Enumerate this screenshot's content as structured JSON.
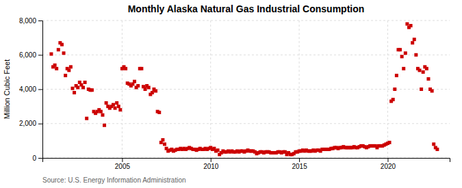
{
  "chart_data": {
    "type": "scatter",
    "title": "Monthly Alaska Natural Gas Industrial Consumption",
    "ylabel": "Million Cubic Feet",
    "annotations": [
      "Source: U.S. Energy Information Administration"
    ],
    "color": "#cc0000",
    "marker": "square",
    "grid": true,
    "xlim": [
      2000.5,
      2023.5
    ],
    "xticks": [
      2005,
      2010,
      2015,
      2020
    ],
    "ylim": [
      0,
      8000
    ],
    "yticks": [
      0,
      {
        "value": 2000,
        "label": "2,000"
      },
      {
        "value": 4000,
        "label": "4,000"
      },
      {
        "value": 6000,
        "label": "6,000"
      },
      {
        "value": 8000,
        "label": "8,000"
      }
    ],
    "x": [
      2001.0,
      2001.1,
      2001.2,
      2001.3,
      2001.4,
      2001.5,
      2001.6,
      2001.7,
      2001.8,
      2001.9,
      2002.0,
      2002.1,
      2002.2,
      2002.3,
      2002.4,
      2002.5,
      2002.6,
      2002.7,
      2002.8,
      2002.9,
      2003.0,
      2003.1,
      2003.2,
      2003.3,
      2003.4,
      2003.5,
      2003.6,
      2003.7,
      2003.8,
      2003.9,
      2004.0,
      2004.1,
      2004.2,
      2004.3,
      2004.4,
      2004.5,
      2004.6,
      2004.7,
      2004.8,
      2004.9,
      2005.0,
      2005.1,
      2005.2,
      2005.3,
      2005.4,
      2005.5,
      2005.6,
      2005.7,
      2005.8,
      2005.9,
      2006.0,
      2006.1,
      2006.2,
      2006.3,
      2006.4,
      2006.5,
      2006.6,
      2006.7,
      2006.8,
      2006.9,
      2007.0,
      2007.1,
      2007.2,
      2007.3,
      2007.4,
      2007.5,
      2007.6,
      2007.7,
      2007.8,
      2007.9,
      2008.0,
      2008.1,
      2008.2,
      2008.3,
      2008.4,
      2008.5,
      2008.6,
      2008.7,
      2008.8,
      2008.9,
      2009.0,
      2009.1,
      2009.2,
      2009.3,
      2009.4,
      2009.5,
      2009.6,
      2009.7,
      2009.8,
      2009.9,
      2010.0,
      2010.1,
      2010.2,
      2010.3,
      2010.4,
      2010.5,
      2010.6,
      2010.7,
      2010.8,
      2010.9,
      2011.0,
      2011.1,
      2011.2,
      2011.3,
      2011.4,
      2011.5,
      2011.6,
      2011.7,
      2011.8,
      2011.9,
      2012.0,
      2012.1,
      2012.2,
      2012.3,
      2012.4,
      2012.5,
      2012.6,
      2012.7,
      2012.8,
      2012.9,
      2013.0,
      2013.1,
      2013.2,
      2013.3,
      2013.4,
      2013.5,
      2013.6,
      2013.7,
      2013.8,
      2013.9,
      2014.0,
      2014.1,
      2014.2,
      2014.3,
      2014.4,
      2014.5,
      2014.6,
      2014.7,
      2014.8,
      2014.9,
      2015.0,
      2015.1,
      2015.2,
      2015.3,
      2015.4,
      2015.5,
      2015.6,
      2015.7,
      2015.8,
      2015.9,
      2016.0,
      2016.1,
      2016.2,
      2016.3,
      2016.4,
      2016.5,
      2016.6,
      2016.7,
      2016.8,
      2016.9,
      2017.0,
      2017.1,
      2017.2,
      2017.3,
      2017.4,
      2017.5,
      2017.6,
      2017.7,
      2017.8,
      2017.9,
      2018.0,
      2018.1,
      2018.2,
      2018.3,
      2018.4,
      2018.5,
      2018.6,
      2018.7,
      2018.8,
      2018.9,
      2019.0,
      2019.1,
      2019.2,
      2019.3,
      2019.4,
      2019.5,
      2019.6,
      2019.7,
      2019.8,
      2019.9,
      2020.0,
      2020.1,
      2020.2,
      2020.3,
      2020.4,
      2020.5,
      2020.6,
      2020.7,
      2020.8,
      2020.9,
      2021.0,
      2021.1,
      2021.2,
      2021.3,
      2021.4,
      2021.5,
      2021.6,
      2021.7,
      2021.8,
      2021.9,
      2022.0,
      2022.1,
      2022.2,
      2022.3,
      2022.4,
      2022.5,
      2022.6,
      2022.7,
      2022.8
    ],
    "values": [
      6050,
      5300,
      5400,
      5200,
      6300,
      6700,
      6600,
      6100,
      4800,
      5200,
      5100,
      5300,
      4050,
      3800,
      4200,
      4100,
      4400,
      4250,
      4100,
      4400,
      2300,
      4000,
      3950,
      3950,
      2700,
      2600,
      2700,
      2800,
      2700,
      2500,
      1900,
      3200,
      3000,
      2900,
      3000,
      3100,
      2900,
      3200,
      3000,
      2800,
      5200,
      5300,
      5200,
      4350,
      4300,
      4200,
      4300,
      4450,
      4100,
      4200,
      5200,
      5200,
      4150,
      4000,
      4200,
      4100,
      3700,
      3800,
      4000,
      3900,
      2700,
      2650,
      900,
      1050,
      800,
      550,
      400,
      450,
      500,
      400,
      450,
      500,
      500,
      550,
      500,
      550,
      500,
      550,
      600,
      550,
      500,
      500,
      450,
      500,
      550,
      500,
      500,
      550,
      500,
      550,
      600,
      500,
      550,
      400,
      450,
      200,
      300,
      400,
      350,
      350,
      400,
      350,
      400,
      350,
      350,
      400,
      350,
      400,
      400,
      350,
      400,
      450,
      400,
      400,
      400,
      350,
      250,
      300,
      350,
      350,
      300,
      350,
      350,
      350,
      300,
      300,
      300,
      300,
      350,
      350,
      300,
      350,
      350,
      200,
      300,
      200,
      200,
      250,
      350,
      350,
      400,
      400,
      450,
      400,
      450,
      400,
      400,
      400,
      450,
      400,
      450,
      450,
      400,
      500,
      500,
      500,
      500,
      500,
      550,
      550,
      600,
      600,
      550,
      600,
      600,
      650,
      600,
      600,
      600,
      600,
      600,
      650,
      600,
      600,
      650,
      700,
      700,
      650,
      600,
      650,
      700,
      700,
      700,
      700,
      600,
      700,
      700,
      700,
      750,
      800,
      850,
      900,
      3300,
      3400,
      4000,
      4800,
      6300,
      6300,
      5900,
      5200,
      6100,
      7800,
      7600,
      7700,
      6700,
      6900,
      6000,
      5200,
      5100,
      4000,
      5000,
      5300,
      5200,
      4600,
      4000,
      3900,
      800,
      600,
      500
    ]
  }
}
